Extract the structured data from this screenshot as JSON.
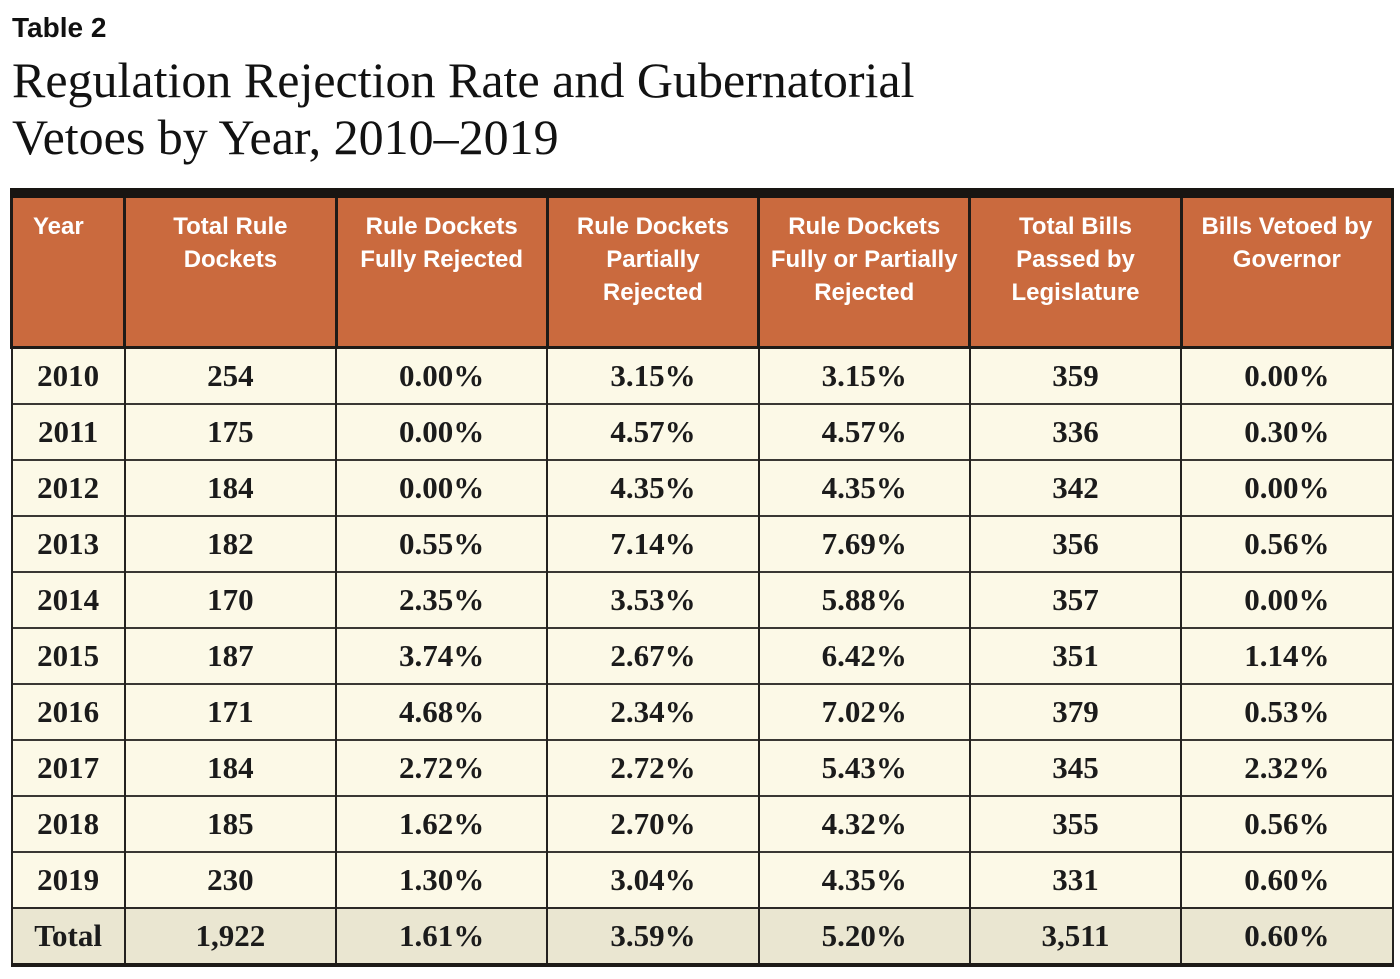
{
  "page": {
    "label": "Table 2",
    "title_line1": "Regulation Rejection Rate and Gubernatorial",
    "title_line2": "Vetoes by Year, 2010–2019"
  },
  "table": {
    "columns": [
      "Year",
      "Total Rule Dockets",
      "Rule Dockets Fully Rejected",
      "Rule Dockets Partially Rejected",
      "Rule Dockets Fully or Partially Rejected",
      "Total Bills Passed by Legislature",
      "Bills Vetoed by Governor"
    ],
    "rows": [
      [
        "2010",
        "254",
        "0.00%",
        "3.15%",
        "3.15%",
        "359",
        "0.00%"
      ],
      [
        "2011",
        "175",
        "0.00%",
        "4.57%",
        "4.57%",
        "336",
        "0.30%"
      ],
      [
        "2012",
        "184",
        "0.00%",
        "4.35%",
        "4.35%",
        "342",
        "0.00%"
      ],
      [
        "2013",
        "182",
        "0.55%",
        "7.14%",
        "7.69%",
        "356",
        "0.56%"
      ],
      [
        "2014",
        "170",
        "2.35%",
        "3.53%",
        "5.88%",
        "357",
        "0.00%"
      ],
      [
        "2015",
        "187",
        "3.74%",
        "2.67%",
        "6.42%",
        "351",
        "1.14%"
      ],
      [
        "2016",
        "171",
        "4.68%",
        "2.34%",
        "7.02%",
        "379",
        "0.53%"
      ],
      [
        "2017",
        "184",
        "2.72%",
        "2.72%",
        "5.43%",
        "345",
        "2.32%"
      ],
      [
        "2018",
        "185",
        "1.62%",
        "2.70%",
        "4.32%",
        "355",
        "0.56%"
      ],
      [
        "2019",
        "230",
        "1.30%",
        "3.04%",
        "4.35%",
        "331",
        "0.60%"
      ]
    ],
    "total": [
      "Total",
      "1,922",
      "1.61%",
      "3.59%",
      "5.20%",
      "3,511",
      "0.60%"
    ]
  },
  "colors": {
    "header_bg": "#ca6a3e",
    "header_text": "#ffffff",
    "row_bg": "#fcf9e7",
    "total_row_bg": "#eae6d1",
    "top_bar": "#181512",
    "body_text": "#1b1b1b"
  }
}
